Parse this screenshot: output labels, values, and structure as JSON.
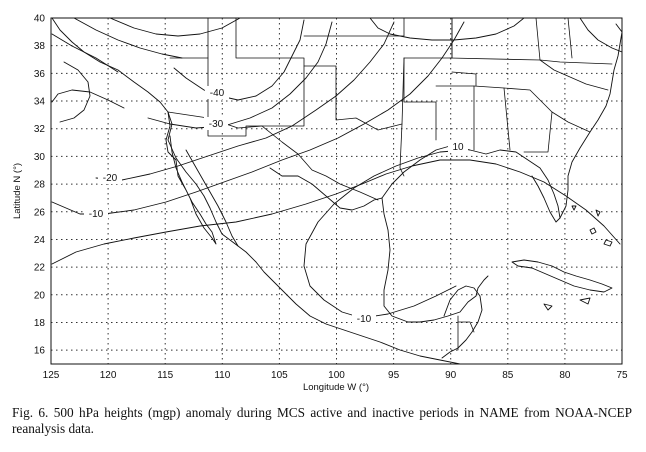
{
  "axes": {
    "x_title": "Longitude W (°)",
    "y_title": "Latitude N (°)",
    "x_ticks": [
      "125",
      "120",
      "115",
      "110",
      "105",
      "100",
      "95",
      "90",
      "85",
      "80",
      "75"
    ],
    "y_ticks": [
      "40",
      "38",
      "36",
      "34",
      "32",
      "30",
      "28",
      "26",
      "24",
      "22",
      "20",
      "18",
      "16"
    ],
    "x_range_deg_w": [
      125,
      75
    ],
    "y_range_deg_n": [
      15,
      40
    ],
    "grid": "dotted"
  },
  "contour_labels": [
    "-40",
    "-30",
    "-20",
    "-10",
    "10",
    "-10"
  ],
  "caption": "Fig. 6. 500 hPa heights (mgp) anomaly during MCS active and inactive periods in NAME from NOAA-NCEP reanalysis data."
}
